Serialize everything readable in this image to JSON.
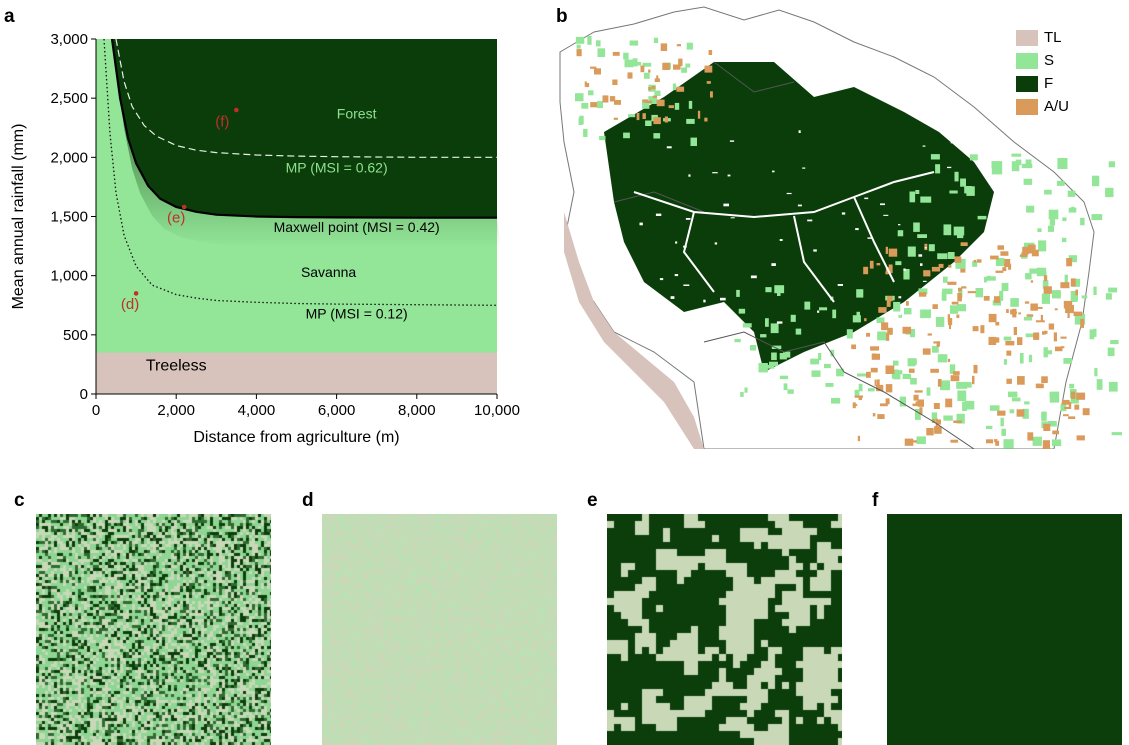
{
  "panels": {
    "a": "a",
    "b": "b",
    "c": "c",
    "d": "d",
    "e": "e",
    "f": "f"
  },
  "colors": {
    "treeless": "#d7c3bb",
    "savanna": "#93e598",
    "forest": "#0b3d0b",
    "agri": "#d99a5a",
    "marker": "#c0302a",
    "tile_savanna": "#8fd694",
    "tile_treeless": "#c9d9b8",
    "tile_forest_dark": "#0b3e0b"
  },
  "chart_data": {
    "type": "line",
    "xlabel": "Distance from agriculture (m)",
    "ylabel": "Mean annual rainfall (mm)",
    "xlim": [
      0,
      10000
    ],
    "ylim": [
      0,
      3000
    ],
    "xticks": [
      0,
      2000,
      4000,
      6000,
      8000,
      10000
    ],
    "xtick_labels": [
      "0",
      "2,000",
      "4,000",
      "6,000",
      "8,000",
      "10,000"
    ],
    "yticks": [
      0,
      500,
      1000,
      1500,
      2000,
      2500,
      3000
    ],
    "ytick_labels": [
      "0",
      "500",
      "1,000",
      "1,500",
      "2,000",
      "2,500",
      "3,000"
    ],
    "regions": [
      {
        "label": "Treeless",
        "rainfall_max": 350
      },
      {
        "label": "Savanna"
      },
      {
        "label": "Forest"
      }
    ],
    "series": [
      {
        "name": "MP (MSI = 0.62)",
        "style": "dashed",
        "x": [
          500,
          700,
          900,
          1200,
          1500,
          2000,
          2500,
          3000,
          4000,
          5000,
          6000,
          8000,
          10000
        ],
        "y": [
          3000,
          2640,
          2430,
          2270,
          2180,
          2100,
          2060,
          2040,
          2020,
          2010,
          2005,
          2000,
          2000
        ]
      },
      {
        "name": "Maxwell point (MSI = 0.42)",
        "style": "solid",
        "x": [
          400,
          600,
          800,
          1000,
          1300,
          1600,
          2000,
          2500,
          3000,
          4000,
          5000,
          6000,
          8000,
          10000
        ],
        "y": [
          3000,
          2500,
          2160,
          1950,
          1760,
          1650,
          1580,
          1540,
          1515,
          1500,
          1495,
          1492,
          1490,
          1490
        ]
      },
      {
        "name": "MP (MSI = 0.12)",
        "style": "dotted",
        "x": [
          200,
          350,
          500,
          700,
          1000,
          1400,
          2000,
          2500,
          3000,
          4000,
          5000,
          6000,
          8000,
          10000
        ],
        "y": [
          3000,
          2200,
          1700,
          1340,
          1080,
          920,
          840,
          810,
          790,
          775,
          765,
          760,
          755,
          750
        ]
      }
    ],
    "annotations": [
      {
        "text": "(d)",
        "marker": [
          1000,
          850
        ],
        "label_at": [
          850,
          720
        ]
      },
      {
        "text": "(e)",
        "marker": [
          2200,
          1580
        ],
        "label_at": [
          2000,
          1450
        ]
      },
      {
        "text": "(f)",
        "marker": [
          3500,
          2400
        ],
        "label_at": [
          3150,
          2260
        ]
      }
    ],
    "region_labels": [
      {
        "text": "Forest",
        "at": [
          6500,
          2330
        ]
      },
      {
        "text": "Savanna",
        "at": [
          5800,
          990
        ]
      },
      {
        "text": "Treeless",
        "at": [
          2000,
          200
        ]
      }
    ],
    "line_labels": [
      {
        "text": "MP (MSI = 0.62)",
        "at": [
          6000,
          1870
        ]
      },
      {
        "text": "Maxwell point (MSI = 0.42)",
        "at": [
          6500,
          1370
        ]
      },
      {
        "text": "MP (MSI = 0.12)",
        "at": [
          6500,
          640
        ]
      }
    ]
  },
  "map_legend": [
    {
      "label": "TL",
      "color": "#d7c3bb"
    },
    {
      "label": "S",
      "color": "#93e598"
    },
    {
      "label": "F",
      "color": "#0b3d0b"
    },
    {
      "label": "A/U",
      "color": "#d99a5a"
    }
  ],
  "tiles": [
    {
      "id": "c",
      "pattern": "mixed-noise"
    },
    {
      "id": "d",
      "pattern": "savanna-treeless-fine"
    },
    {
      "id": "e",
      "pattern": "forest-patches"
    },
    {
      "id": "f",
      "pattern": "uniform-forest"
    }
  ]
}
